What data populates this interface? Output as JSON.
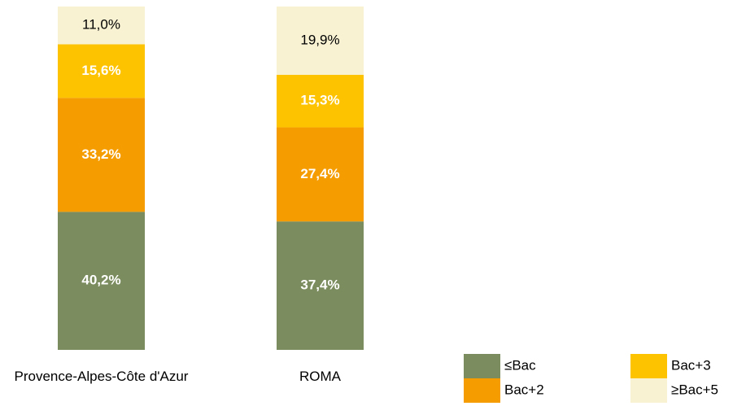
{
  "chart_data": {
    "type": "stacked_bar",
    "categories": [
      "Provence-Alpes-Côte d'Azur",
      "ROMA"
    ],
    "series": [
      {
        "name": "≤Bac",
        "color": "#7b8c5e",
        "values": [
          40.2,
          37.4
        ],
        "value_labels": [
          "40,2%",
          "37,4%"
        ]
      },
      {
        "name": "Bac+2",
        "color": "#f59c00",
        "values": [
          33.2,
          27.4
        ],
        "value_labels": [
          "33,2%",
          "27,4%"
        ]
      },
      {
        "name": "Bac+3",
        "color": "#fdc300",
        "values": [
          15.6,
          15.3
        ],
        "value_labels": [
          "15,6%",
          "15,3%"
        ]
      },
      {
        "name": "≥Bac+5",
        "color": "#f8f1d2",
        "values": [
          11.0,
          19.9
        ],
        "value_labels": [
          "11,0%",
          "19,9%"
        ]
      }
    ]
  }
}
